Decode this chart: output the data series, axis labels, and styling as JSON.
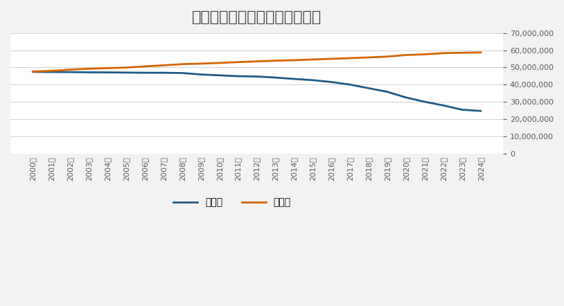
{
  "title": "新聞の発行部数と世帯数の推移",
  "years": [
    2000,
    2001,
    2002,
    2003,
    2004,
    2005,
    2006,
    2007,
    2008,
    2009,
    2010,
    2011,
    2012,
    2013,
    2014,
    2015,
    2016,
    2017,
    2018,
    2019,
    2020,
    2021,
    2022,
    2023,
    2024
  ],
  "ippanshi": [
    47400000,
    47320000,
    47270000,
    47150000,
    47100000,
    47000000,
    46890000,
    46870000,
    46740000,
    45900000,
    45400000,
    44900000,
    44700000,
    44100000,
    43300000,
    42600000,
    41500000,
    40000000,
    37900000,
    35800000,
    32500000,
    30000000,
    27900000,
    25400000,
    24700000
  ],
  "setaisuu": [
    47600000,
    48000000,
    48700000,
    49200000,
    49600000,
    49900000,
    50600000,
    51200000,
    51900000,
    52200000,
    52600000,
    53100000,
    53500000,
    53900000,
    54200000,
    54600000,
    55000000,
    55400000,
    55800000,
    56300000,
    57200000,
    57600000,
    58300000,
    58500000,
    58700000
  ],
  "ippanshi_color": "#1f5a87",
  "setaisuu_color": "#d46500",
  "background_color": "#f2f2f2",
  "plot_background_color": "#ffffff",
  "title_color": "#404040",
  "tick_color": "#595959",
  "grid_color": "#d0d0d0",
  "legend_label_ippanshi": "一般紙",
  "legend_label_setaisuu": "世帯数",
  "ylim": [
    0,
    70000000
  ],
  "yticks": [
    0,
    10000000,
    20000000,
    30000000,
    40000000,
    50000000,
    60000000,
    70000000
  ],
  "line_width": 2.0,
  "title_fontsize": 16,
  "tick_fontsize": 8,
  "legend_fontsize": 10
}
